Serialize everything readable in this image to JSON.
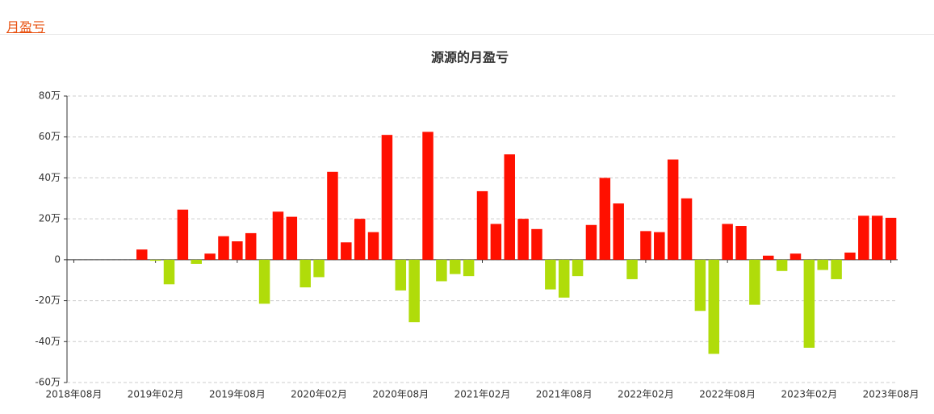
{
  "header": {
    "tab": "月盈亏"
  },
  "chart_data": {
    "type": "bar",
    "title": "源源的月盈亏",
    "categories": [
      "2018年08月",
      null,
      null,
      null,
      null,
      null,
      "2019年02月",
      null,
      null,
      null,
      null,
      null,
      "2019年08月",
      null,
      null,
      null,
      null,
      null,
      "2020年02月",
      null,
      null,
      null,
      null,
      null,
      "2020年08月",
      null,
      null,
      null,
      null,
      null,
      "2021年02月",
      null,
      null,
      null,
      null,
      null,
      "2021年08月",
      null,
      null,
      null,
      null,
      null,
      "2022年02月",
      null,
      null,
      null,
      null,
      null,
      "2022年08月",
      null,
      null,
      null,
      null,
      null,
      "2023年02月",
      null,
      null,
      null,
      null,
      null,
      "2023年08月"
    ],
    "values": [
      0,
      0,
      0,
      0,
      0,
      5,
      -0.5,
      -12,
      24.5,
      -2,
      3,
      11.5,
      9,
      13,
      -21.5,
      23.5,
      21,
      -13.5,
      -8.5,
      43,
      8.5,
      20,
      13.5,
      61,
      -15,
      -30.5,
      62.5,
      -10.5,
      -7,
      -8,
      33.5,
      17.5,
      51.5,
      20,
      15,
      -14.5,
      -18.5,
      -8,
      17,
      40,
      27.5,
      -9.5,
      14,
      13.5,
      49,
      30,
      -25,
      -46,
      17.5,
      16.5,
      -22,
      2,
      -5.5,
      3,
      -43,
      -5,
      -9.5,
      3.5,
      21.5,
      21.5,
      20.5
    ],
    "positive_color": "#ff1000",
    "negative_color": "#b0dc0a",
    "ylim": [
      -60,
      80
    ],
    "yticks": [
      {
        "value": -60,
        "label": "-60万"
      },
      {
        "value": -40,
        "label": "-40万"
      },
      {
        "value": -20,
        "label": "-20万"
      },
      0,
      {
        "value": 20,
        "label": "20万"
      },
      {
        "value": 40,
        "label": "40万"
      },
      {
        "value": 60,
        "label": "60万"
      },
      {
        "value": 80,
        "label": "80万"
      }
    ],
    "grid": true
  }
}
